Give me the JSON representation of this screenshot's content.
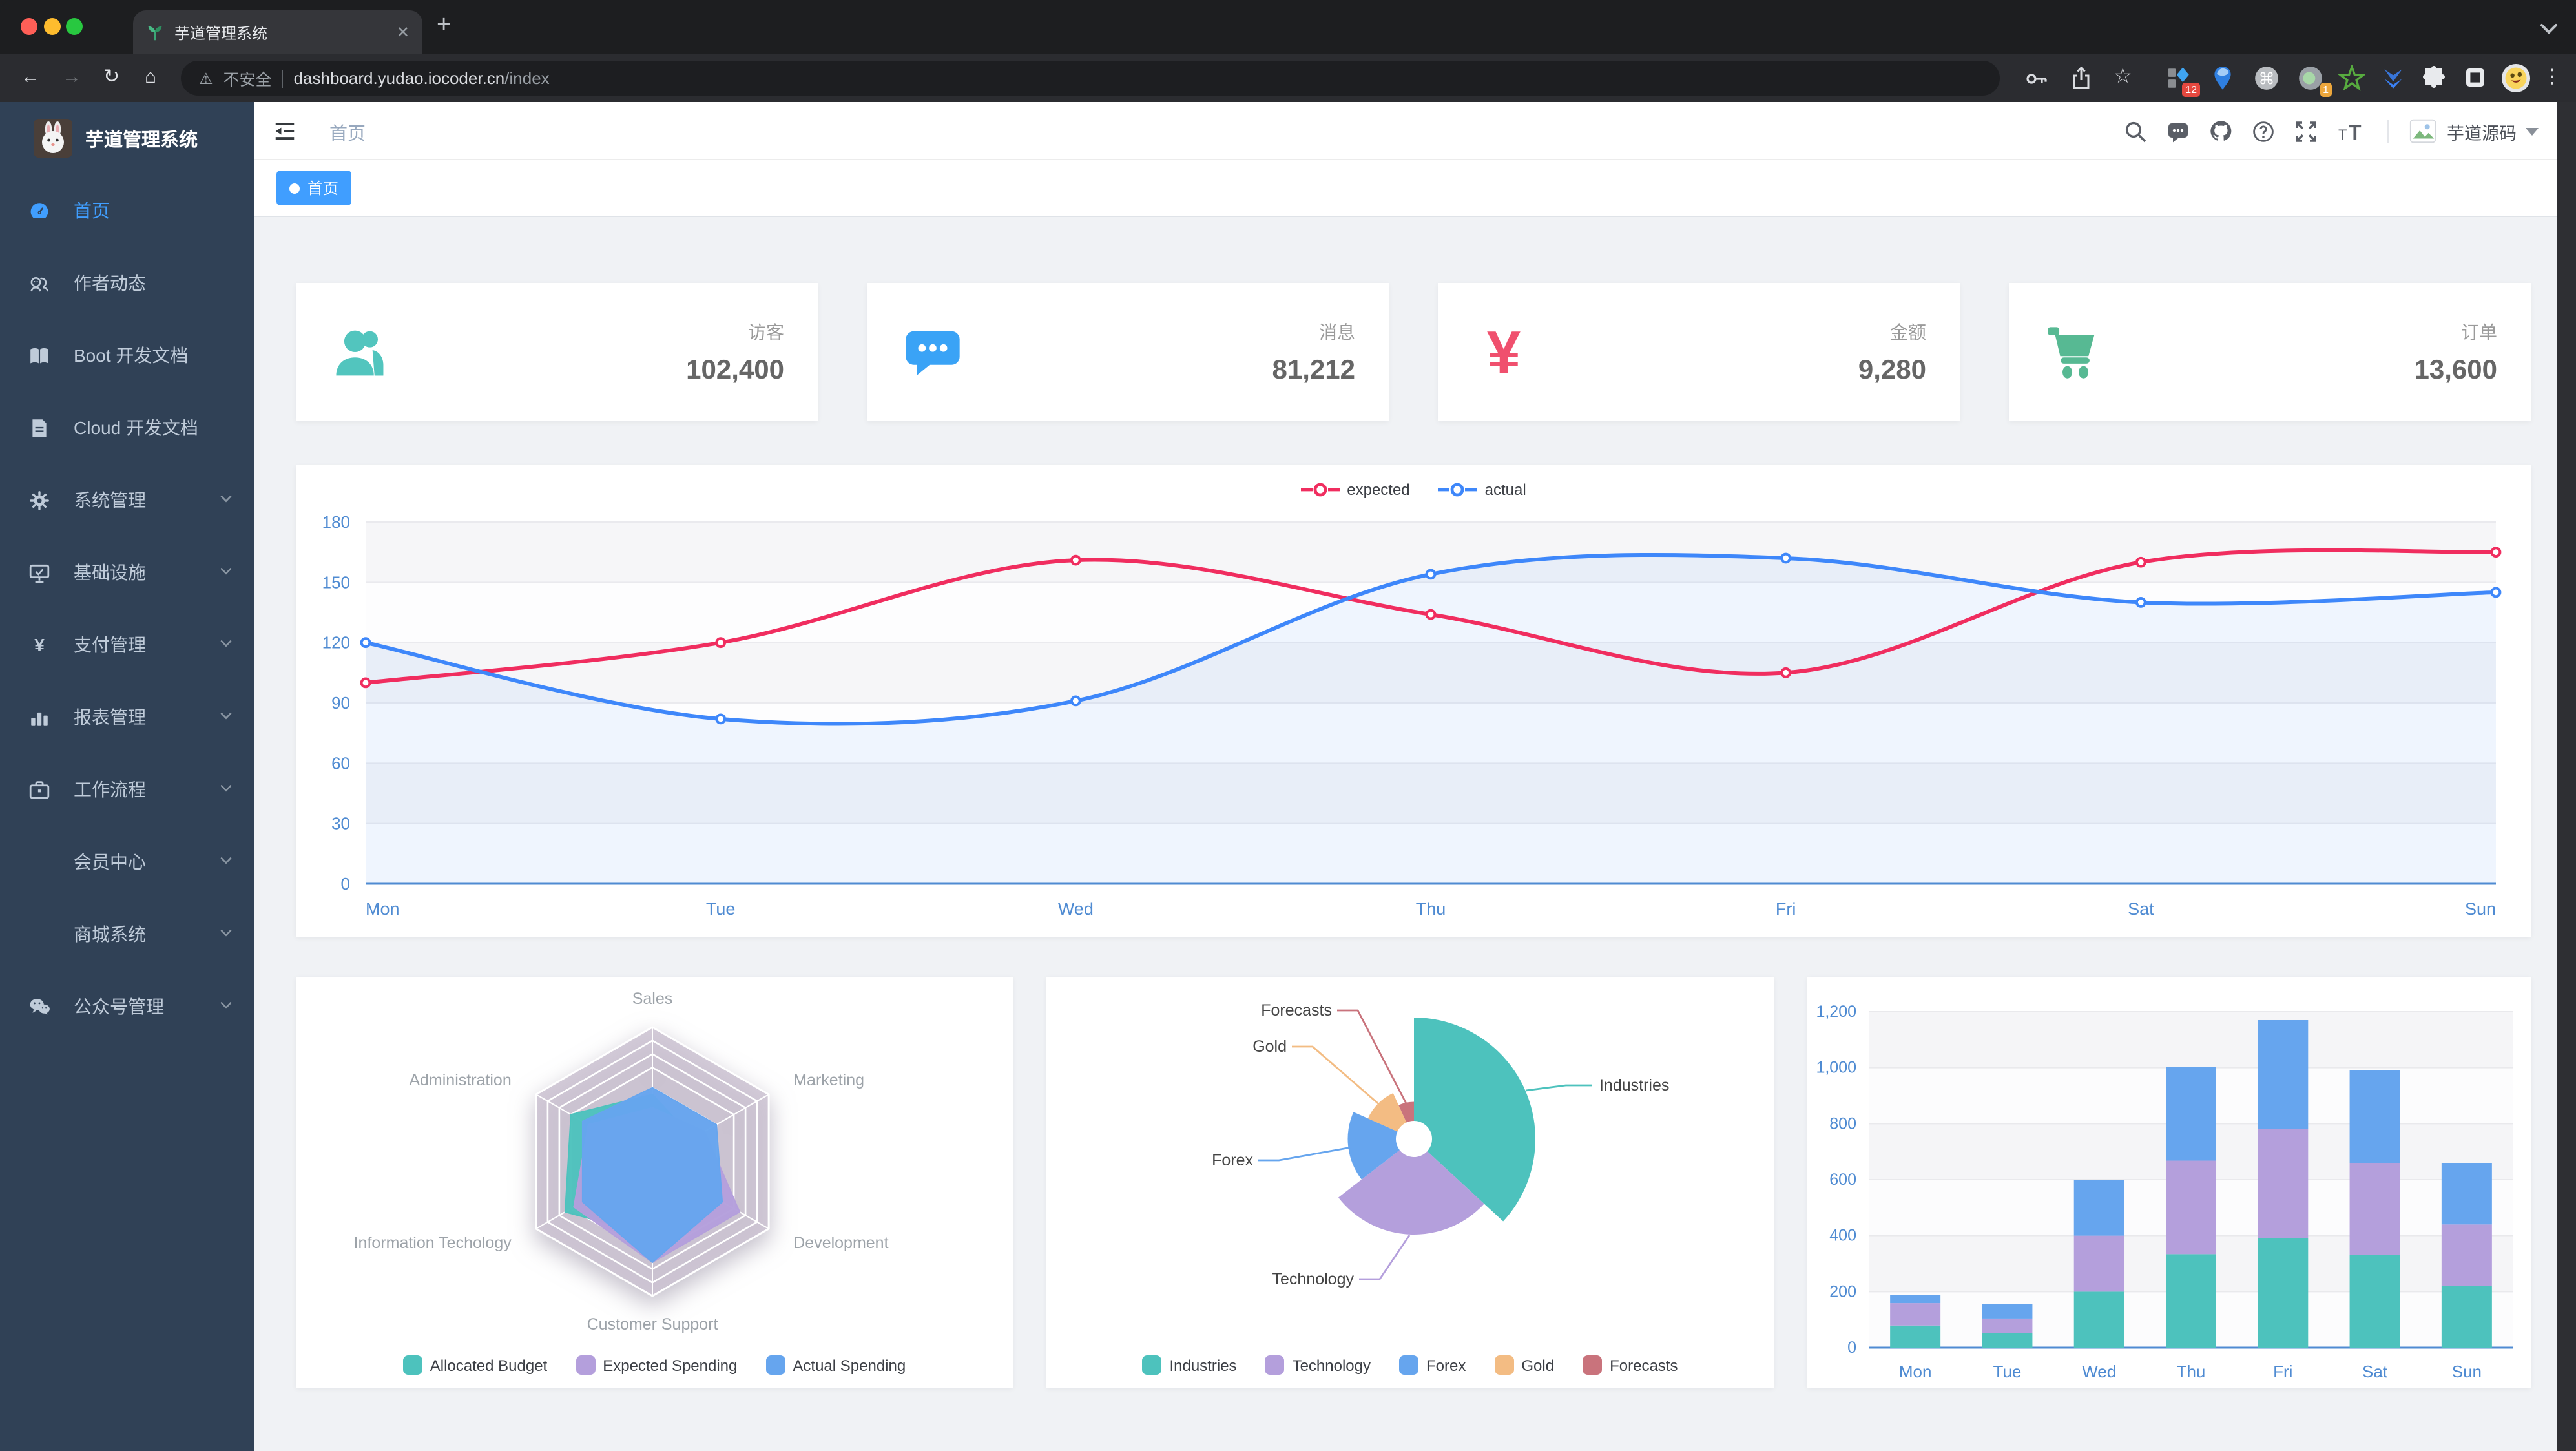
{
  "browser": {
    "tab_title": "芋道管理系统",
    "tab_close": "✕",
    "new_tab_label": "+",
    "security_label": "不安全",
    "url_host": "dashboard.yudao.iocoder.cn",
    "url_path": "/index",
    "extension_badge_1": "12",
    "extension_badge_2": "1"
  },
  "sidebar": {
    "logo_title": "芋道管理系统",
    "items": [
      {
        "label": "首页",
        "icon": "dashboard-icon",
        "active": true,
        "arrow": false
      },
      {
        "label": "作者动态",
        "icon": "people-icon",
        "active": false,
        "arrow": false
      },
      {
        "label": "Boot 开发文档",
        "icon": "book-icon",
        "active": false,
        "arrow": false
      },
      {
        "label": "Cloud 开发文档",
        "icon": "document-icon",
        "active": false,
        "arrow": false
      },
      {
        "label": "系统管理",
        "icon": "gear-icon",
        "active": false,
        "arrow": true
      },
      {
        "label": "基础设施",
        "icon": "monitor-icon",
        "active": false,
        "arrow": true
      },
      {
        "label": "支付管理",
        "icon": "yen-icon",
        "active": false,
        "arrow": true
      },
      {
        "label": "报表管理",
        "icon": "bar-chart-icon",
        "active": false,
        "arrow": true
      },
      {
        "label": "工作流程",
        "icon": "briefcase-icon",
        "active": false,
        "arrow": true
      },
      {
        "label": "会员中心",
        "icon": "",
        "active": false,
        "arrow": true
      },
      {
        "label": "商城系统",
        "icon": "",
        "active": false,
        "arrow": true
      },
      {
        "label": "公众号管理",
        "icon": "wechat-icon",
        "active": false,
        "arrow": true
      }
    ]
  },
  "header": {
    "breadcrumb": "首页",
    "username": "芋道源码",
    "icons": [
      "search-icon",
      "message-icon",
      "github-icon",
      "help-icon",
      "fullscreen-icon",
      "font-size-icon"
    ]
  },
  "tags": {
    "active_tag": "首页"
  },
  "stats": [
    {
      "label": "访客",
      "value": "102,400",
      "icon": "users-icon",
      "color": "#52c5be"
    },
    {
      "label": "消息",
      "value": "81,212",
      "icon": "message-bubble-icon",
      "color": "#3aa3f6"
    },
    {
      "label": "金额",
      "value": "9,280",
      "icon": "yen-icon",
      "color": "#f0506e"
    },
    {
      "label": "订单",
      "value": "13,600",
      "icon": "cart-icon",
      "color": "#57b993"
    }
  ],
  "chart_data": [
    {
      "type": "line",
      "x": [
        "Mon",
        "Tue",
        "Wed",
        "Thu",
        "Fri",
        "Sat",
        "Sun"
      ],
      "series": [
        {
          "name": "expected",
          "color": "#f02d5f",
          "values": [
            100,
            120,
            161,
            134,
            105,
            160,
            165
          ]
        },
        {
          "name": "actual",
          "color": "#3e87fa",
          "values": [
            120,
            82,
            91,
            154,
            162,
            140,
            145
          ]
        }
      ],
      "ylim": [
        0,
        180
      ],
      "yticks": [
        0,
        30,
        60,
        90,
        120,
        150,
        180
      ],
      "xlabel": "",
      "ylabel": "",
      "legend_position": "top",
      "grid": true,
      "axis_color": "#4f8bd2",
      "area_series": "actual"
    },
    {
      "type": "radar",
      "indicators": [
        {
          "name": "Sales",
          "max": 10000
        },
        {
          "name": "Marketing",
          "max": 20000
        },
        {
          "name": "Development",
          "max": 20000
        },
        {
          "name": "Customer Support",
          "max": 20000
        },
        {
          "name": "Information Techology",
          "max": 20000
        },
        {
          "name": "Administration",
          "max": 20000
        }
      ],
      "series": [
        {
          "name": "Allocated Budget",
          "color": "#4dc2bd",
          "values": [
            5000,
            7000,
            12000,
            11000,
            15000,
            14000
          ]
        },
        {
          "name": "Expected Spending",
          "color": "#b49fdc",
          "values": [
            4000,
            9000,
            15000,
            15000,
            13500,
            11000
          ]
        },
        {
          "name": "Actual Spending",
          "color": "#66a5ee",
          "values": [
            5500,
            11000,
            12000,
            15000,
            12000,
            12000
          ]
        }
      ],
      "legend_position": "bottom"
    },
    {
      "type": "pie",
      "rose": true,
      "slices": [
        {
          "name": "Industries",
          "value": 320,
          "color": "#4dc2bd"
        },
        {
          "name": "Technology",
          "value": 240,
          "color": "#b49fdc"
        },
        {
          "name": "Forex",
          "value": 149,
          "color": "#66a5ee"
        },
        {
          "name": "Gold",
          "value": 100,
          "color": "#f3bc83"
        },
        {
          "name": "Forecasts",
          "value": 59,
          "color": "#c9737c"
        }
      ],
      "legend_position": "bottom"
    },
    {
      "type": "bar",
      "stacked": true,
      "categories": [
        "Mon",
        "Tue",
        "Wed",
        "Thu",
        "Fri",
        "Sat",
        "Sun"
      ],
      "series": [
        {
          "color": "#4dc2bd",
          "values": [
            79,
            52,
            200,
            334,
            390,
            330,
            220
          ]
        },
        {
          "color": "#b49fdc",
          "values": [
            80,
            52,
            200,
            334,
            390,
            330,
            220
          ]
        },
        {
          "color": "#66a5ee",
          "values": [
            30,
            52,
            200,
            334,
            390,
            330,
            220
          ]
        }
      ],
      "ylim": [
        0,
        1200
      ],
      "yticks": [
        0,
        200,
        400,
        600,
        800,
        1000,
        1200
      ],
      "ytick_labels": [
        "0",
        "200",
        "400",
        "600",
        "800",
        "1,000",
        "1,200"
      ],
      "axis_color": "#4f8bd2"
    }
  ]
}
